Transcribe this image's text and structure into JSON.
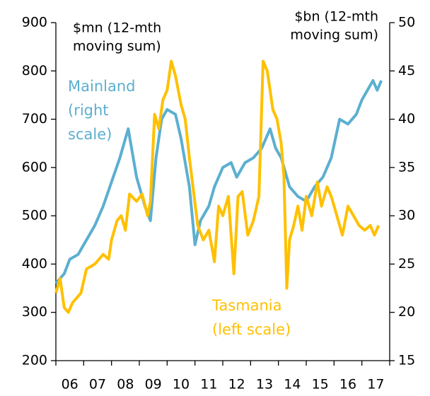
{
  "chart_data": {
    "type": "line",
    "left_unit": [
      "$mn (12-mth",
      "moving sum)"
    ],
    "right_unit": [
      "$bn (12-mth",
      "moving sum)"
    ],
    "xlim": [
      2006,
      2018
    ],
    "xticks": [
      {
        "value": 2006.5,
        "label": "06"
      },
      {
        "value": 2007.5,
        "label": "07"
      },
      {
        "value": 2008.5,
        "label": "08"
      },
      {
        "value": 2009.5,
        "label": "09"
      },
      {
        "value": 2010.5,
        "label": "10"
      },
      {
        "value": 2011.5,
        "label": "11"
      },
      {
        "value": 2012.5,
        "label": "12"
      },
      {
        "value": 2013.5,
        "label": "13"
      },
      {
        "value": 2014.5,
        "label": "14"
      },
      {
        "value": 2015.5,
        "label": "15"
      },
      {
        "value": 2016.5,
        "label": "16"
      },
      {
        "value": 2017.5,
        "label": "17"
      }
    ],
    "ylim": [
      200,
      900
    ],
    "yticks": [
      200,
      300,
      400,
      500,
      600,
      700,
      800,
      900
    ],
    "y2lim": [
      15,
      50
    ],
    "y2ticks": [
      15,
      20,
      25,
      30,
      35,
      40,
      45,
      50
    ],
    "series": [
      {
        "label": [
          "Tasmania",
          "(left scale)"
        ],
        "color": "#FFC000",
        "axis": "y",
        "x": [
          2006.0,
          2006.15,
          2006.3,
          2006.45,
          2006.6,
          2006.9,
          2007.1,
          2007.4,
          2007.7,
          2007.9,
          2008.0,
          2008.2,
          2008.35,
          2008.5,
          2008.65,
          2008.9,
          2009.1,
          2009.3,
          2009.4,
          2009.55,
          2009.7,
          2009.85,
          2010.0,
          2010.15,
          2010.3,
          2010.5,
          2010.65,
          2010.8,
          2010.95,
          2011.1,
          2011.3,
          2011.5,
          2011.7,
          2011.85,
          2012.0,
          2012.2,
          2012.4,
          2012.55,
          2012.7,
          2012.9,
          2013.1,
          2013.3,
          2013.45,
          2013.6,
          2013.8,
          2013.95,
          2014.1,
          2014.2,
          2014.3,
          2014.4,
          2014.55,
          2014.7,
          2014.85,
          2015.0,
          2015.2,
          2015.4,
          2015.55,
          2015.75,
          2015.9,
          2016.1,
          2016.3,
          2016.5,
          2016.7,
          2016.9,
          2017.1,
          2017.3,
          2017.45,
          2017.6
        ],
        "values": [
          340,
          370,
          310,
          300,
          320,
          340,
          390,
          400,
          420,
          410,
          450,
          490,
          500,
          470,
          545,
          530,
          545,
          500,
          530,
          710,
          680,
          740,
          760,
          820,
          790,
          730,
          700,
          620,
          550,
          480,
          450,
          470,
          405,
          520,
          500,
          540,
          380,
          540,
          550,
          460,
          490,
          540,
          820,
          800,
          720,
          700,
          650,
          580,
          350,
          450,
          480,
          520,
          470,
          540,
          500,
          570,
          520,
          560,
          540,
          500,
          460,
          520,
          500,
          480,
          470,
          480,
          460,
          480
        ]
      },
      {
        "label": [
          "Mainland",
          "(right",
          "scale)"
        ],
        "color": "#5BAFD0",
        "axis": "y2",
        "x": [
          2006.0,
          2006.3,
          2006.5,
          2006.8,
          2007.1,
          2007.4,
          2007.7,
          2008.0,
          2008.3,
          2008.6,
          2008.9,
          2009.2,
          2009.4,
          2009.6,
          2009.8,
          2010.0,
          2010.3,
          2010.5,
          2010.8,
          2011.0,
          2011.2,
          2011.5,
          2011.7,
          2012.0,
          2012.3,
          2012.5,
          2012.8,
          2013.1,
          2013.4,
          2013.7,
          2013.9,
          2014.1,
          2014.4,
          2014.7,
          2015.0,
          2015.3,
          2015.6,
          2015.9,
          2016.2,
          2016.5,
          2016.8,
          2017.0,
          2017.4,
          2017.55,
          2017.7
        ],
        "values": [
          23,
          24,
          25.5,
          26,
          27.5,
          29,
          31,
          33.5,
          36,
          39,
          34,
          31,
          29.5,
          36,
          40,
          41,
          40.5,
          38,
          33,
          27,
          29.5,
          31,
          33,
          35,
          35.5,
          34,
          35.5,
          36,
          37,
          39,
          37,
          36,
          33,
          32,
          31.5,
          33,
          34,
          36,
          40,
          39.5,
          40.5,
          42,
          44,
          43,
          44
        ]
      }
    ]
  }
}
